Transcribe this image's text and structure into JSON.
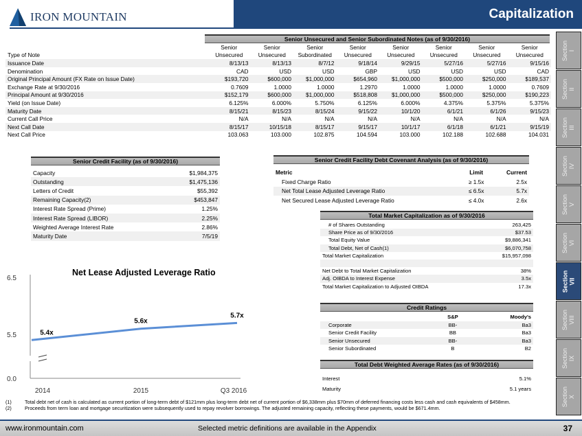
{
  "header": {
    "title": "Capitalization",
    "logo": "IRON MOUNTAIN"
  },
  "notes": {
    "title": "Senior Unsecured and Senior Subordinated Notes (as of 9/30/2016)",
    "header_top": [
      "",
      "Senior",
      "Senior",
      "Senior",
      "Senior",
      "Senior",
      "Senior",
      "Senior",
      "Senior"
    ],
    "rows": [
      [
        "Type of Note",
        "Unsecured",
        "Unsecured",
        "Subordinated",
        "Unsecured",
        "Unsecured",
        "Unsecured",
        "Unsecured",
        "Unsecured"
      ],
      [
        "Issuance Date",
        "8/13/13",
        "8/13/13",
        "8/7/12",
        "9/18/14",
        "9/29/15",
        "5/27/16",
        "5/27/16",
        "9/15/16"
      ],
      [
        "Denomination",
        "CAD",
        "USD",
        "USD",
        "GBP",
        "USD",
        "USD",
        "USD",
        "CAD"
      ],
      [
        "Original Principal Amount (FX Rate on Issue Date)",
        "$193,720",
        "$600,000",
        "$1,000,000",
        "$654,960",
        "$1,000,000",
        "$500,000",
        "$250,000",
        "$189,537"
      ],
      [
        "Exchange Rate at 9/30/2016",
        "0.7609",
        "1.0000",
        "1.0000",
        "1.2970",
        "1.0000",
        "1.0000",
        "1.0000",
        "0.7609"
      ],
      [
        "Principal Amount at 9/30/2016",
        "$152,179",
        "$600,000",
        "$1,000,000",
        "$518,808",
        "$1,000,000",
        "$500,000",
        "$250,000",
        "$190,223"
      ],
      [
        "Yield (on Issue Date)",
        "6.125%",
        "6.000%",
        "5.750%",
        "6.125%",
        "6.000%",
        "4.375%",
        "5.375%",
        "5.375%"
      ],
      [
        "Maturity Date",
        "8/15/21",
        "8/15/23",
        "8/15/24",
        "9/15/22",
        "10/1/20",
        "6/1/21",
        "6/1/26",
        "9/15/23"
      ],
      [
        "Current Call Price",
        "N/A",
        "N/A",
        "N/A",
        "N/A",
        "N/A",
        "N/A",
        "N/A",
        "N/A"
      ],
      [
        "Next Call Date",
        "8/15/17",
        "10/15/18",
        "8/15/17",
        "9/15/17",
        "10/1/17",
        "6/1/18",
        "6/1/21",
        "9/15/19"
      ],
      [
        "Next Call Price",
        "103.063",
        "103.000",
        "102.875",
        "104.594",
        "103.000",
        "102.188",
        "102.688",
        "104.031"
      ]
    ]
  },
  "scf": {
    "title": "Senior Credit Facility (as of 9/30/2016)",
    "rows": [
      [
        "Capacity",
        "$1,984,375"
      ],
      [
        "Outstanding",
        "$1,475,136"
      ],
      [
        "Letters of Credit",
        "$55,392"
      ],
      [
        "Remaining Capacity(2)",
        "$453,847"
      ],
      [
        "Interest Rate Spread (Prime)",
        "1.25%"
      ],
      [
        "Interest Rate Spread (LIBOR)",
        "2.25%"
      ],
      [
        "Weighted Average Interest Rate",
        "2.86%"
      ],
      [
        "Maturity Date",
        "7/5/19"
      ]
    ]
  },
  "cov": {
    "title": "Senior Credit Facility Debt Covenant Analysis (as of 9/30/2016)",
    "headers": [
      "Metric",
      "Limit",
      "Current"
    ],
    "rows": [
      [
        "Fixed Charge Ratio",
        "≥ 1.5x",
        "2.5x"
      ],
      [
        "Net Total Lease Adjusted Leverage Ratio",
        "≤ 6.5x",
        "5.7x"
      ],
      [
        "Net Secured Lease Adjusted Leverage Ratio",
        "≤ 4.0x",
        "2.6x"
      ]
    ]
  },
  "mcap": {
    "title": "Total Market Capitalization as of 9/30/2016",
    "rows": [
      [
        "# of Shares Outstanding",
        "263,425"
      ],
      [
        "Share Price as of 9/30/2016",
        "$37.53"
      ],
      [
        "Total Equity Value",
        "$9,886,341"
      ],
      [
        "Total Debt, Net of Cash(1)",
        "$6,070,758"
      ],
      [
        "Total Market Capitalization",
        "$15,957,098"
      ],
      [
        "",
        ""
      ],
      [
        "Net Debt to Total Market Capitalization",
        "38%"
      ],
      [
        "Adj. OIBDA to Interest Expense",
        "3.5x"
      ],
      [
        "Total Market Capitalization to Adjusted OIBDA",
        "17.3x"
      ]
    ]
  },
  "credit": {
    "title": "Credit Ratings",
    "headers": [
      "",
      "S&P",
      "Moody's"
    ],
    "rows": [
      [
        "Corporate",
        "BB-",
        "Ba3"
      ],
      [
        "Senior Credit Facility",
        "BB",
        "Ba3"
      ],
      [
        "Senior Unsecured",
        "BB-",
        "Ba3"
      ],
      [
        "Senior Subordinated",
        "B",
        "B2"
      ]
    ]
  },
  "rates": {
    "title": "Total Debt Weighted Average Rates (as of 9/30/2016)",
    "rows": [
      [
        "Interest",
        "5.1%"
      ],
      [
        "Maturity",
        "5.1 years"
      ]
    ]
  },
  "chart_data": {
    "type": "line",
    "title": "Net Lease Adjusted Leverage Ratio",
    "categories": [
      "2014",
      "2015",
      "Q3 2016"
    ],
    "values": [
      5.4,
      5.6,
      5.7
    ],
    "labels": [
      "5.4x",
      "5.6x",
      "5.7x"
    ],
    "yticks": [
      "6.5",
      "5.5",
      "0.0"
    ],
    "ylim": [
      0,
      6.5
    ],
    "axis_break": true
  },
  "tabs": [
    "Section\nI",
    "Section\nII",
    "Section\nIII",
    "Section\nIV",
    "Section\nV",
    "Section\nVI",
    "Section\nVII",
    "Section\nVIII",
    "Section\nIX",
    "Section\nX"
  ],
  "active_tab": 6,
  "footnotes": [
    [
      "(1)",
      "Total debt net of cash is calculated as current portion of long-term debt of $121mm plus long-term debt net of current portion of $6,338mm plus $70mm of deferred financing costs less cash and cash equivalents of $458mm."
    ],
    [
      "(2)",
      "Proceeds from term loan and mortgage securitization were subsequently used to repay revolver borrowings. The adjusted remaining capacity, reflecting these payments, would be $671.4mm."
    ]
  ],
  "footer": {
    "url": "www.ironmountain.com",
    "note": "Selected metric definitions are available in the Appendix",
    "page": "37"
  },
  "colors": {
    "brand": "#1f477c"
  }
}
